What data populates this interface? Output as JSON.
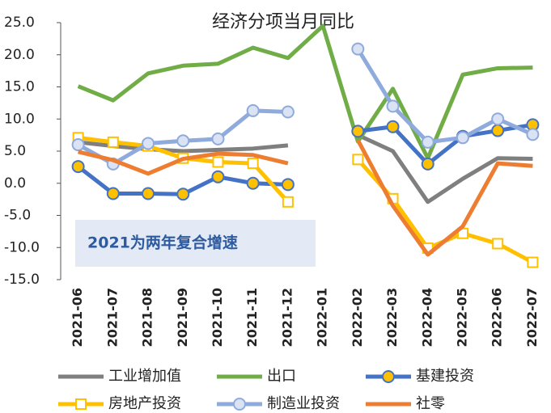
{
  "chart_data": {
    "type": "line",
    "title": "经济分项当月同比",
    "annotation": "2021为两年复合增速",
    "categories": [
      "2021-06",
      "2021-07",
      "2021-08",
      "2021-09",
      "2021-10",
      "2021-11",
      "2021-12",
      "2022-01",
      "2022-02",
      "2022-03",
      "2022-04",
      "2022-05",
      "2022-06",
      "2022-07"
    ],
    "ylim": [
      -15,
      25
    ],
    "yticks": [
      {
        "value": -15,
        "label": "-15.0"
      },
      {
        "value": -10,
        "label": "-10.0"
      },
      {
        "value": -5,
        "label": "-5.0"
      },
      {
        "value": 0,
        "label": "0.0"
      },
      {
        "value": 5,
        "label": "5.0"
      },
      {
        "value": 10,
        "label": "10.0"
      },
      {
        "value": 15,
        "label": "15.0"
      },
      {
        "value": 20,
        "label": "20.0"
      },
      {
        "value": 25,
        "label": "25.0"
      }
    ],
    "series": [
      {
        "name": "工业增加值",
        "color": "#7f7f7f",
        "marker": "none",
        "values": [
          6.4,
          5.8,
          5.3,
          5.0,
          5.2,
          5.4,
          5.9,
          null,
          7.5,
          5.0,
          -2.9,
          0.7,
          3.9,
          3.8
        ]
      },
      {
        "name": "出口",
        "color": "#70ad47",
        "marker": "none",
        "values": [
          15.1,
          12.9,
          17.1,
          18.3,
          18.6,
          21.1,
          19.5,
          24.5,
          6.5,
          14.7,
          3.9,
          16.9,
          17.9,
          18.0
        ]
      },
      {
        "name": "基建投资",
        "color": "#4472c4",
        "marker": "circle",
        "marker_fill": "#ffc000",
        "values": [
          2.6,
          -1.6,
          -1.6,
          -1.7,
          1.0,
          0.0,
          -0.2,
          null,
          8.1,
          8.8,
          3.0,
          7.3,
          8.2,
          9.1
        ]
      },
      {
        "name": "房地产投资",
        "color": "#ffc000",
        "marker": "square",
        "marker_fill": "#ffffff",
        "values": [
          7.1,
          6.4,
          5.8,
          3.9,
          3.3,
          3.1,
          -2.9,
          null,
          3.7,
          -2.4,
          -10.1,
          -7.8,
          -9.4,
          -12.3
        ]
      },
      {
        "name": "制造业投资",
        "color": "#8faadc",
        "marker": "circle",
        "marker_fill": "#dae3f3",
        "values": [
          6.0,
          3.0,
          6.2,
          6.6,
          6.9,
          11.3,
          11.1,
          null,
          20.9,
          12.0,
          6.4,
          7.1,
          10.0,
          7.6
        ]
      },
      {
        "name": "社零",
        "color": "#ed7d31",
        "marker": "none",
        "values": [
          4.9,
          3.6,
          1.5,
          3.8,
          4.6,
          4.4,
          3.1,
          null,
          6.7,
          -3.5,
          -11.1,
          -6.7,
          3.1,
          2.7
        ]
      }
    ]
  }
}
